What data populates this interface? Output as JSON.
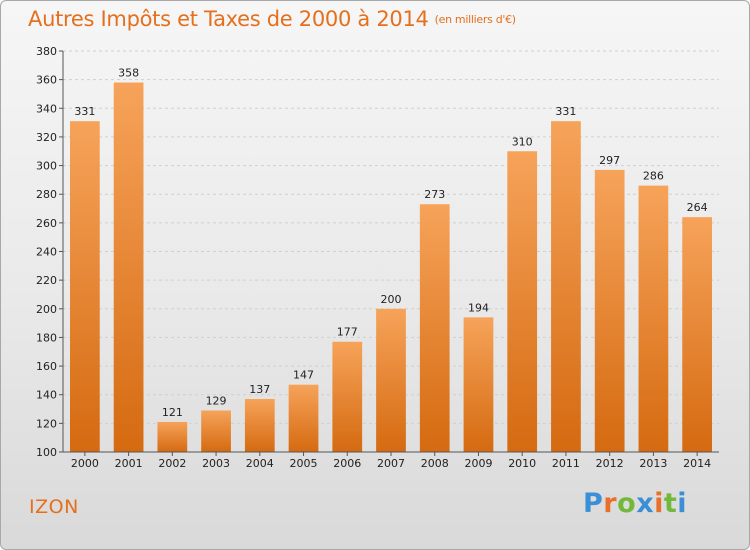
{
  "header": {
    "title": "Autres Impôts et Taxes de 2000 à 2014",
    "subtitle": "(en milliers d'€)"
  },
  "footer": {
    "commune": "IZON",
    "logo_letters": [
      "P",
      "r",
      "o",
      "x",
      "i",
      "t",
      "i"
    ]
  },
  "colors": {
    "title": "#e4701e",
    "bar_top": "#f6a35a",
    "bar_bottom": "#d56a10"
  },
  "chart_data": {
    "type": "bar",
    "title": "Autres Impôts et Taxes de 2000 à 2014",
    "subtitle": "(en milliers d'€)",
    "xlabel": "",
    "ylabel": "",
    "categories": [
      "2000",
      "2001",
      "2002",
      "2003",
      "2004",
      "2005",
      "2006",
      "2007",
      "2008",
      "2009",
      "2010",
      "2011",
      "2012",
      "2013",
      "2014"
    ],
    "values": [
      331,
      358,
      121,
      129,
      137,
      147,
      177,
      200,
      273,
      194,
      310,
      331,
      297,
      286,
      264
    ],
    "ylim": [
      100,
      380
    ],
    "yticks": [
      100,
      120,
      140,
      160,
      180,
      200,
      220,
      240,
      260,
      280,
      300,
      320,
      340,
      360,
      380
    ],
    "grid": true,
    "legend": "none"
  }
}
